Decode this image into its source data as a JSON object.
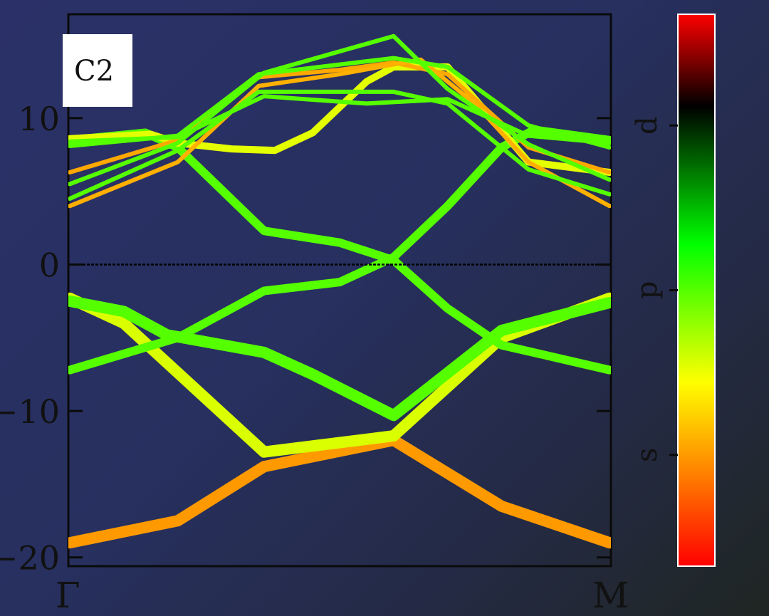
{
  "chart_data": {
    "type": "line",
    "panel_label": "C2",
    "x_ticks": [
      "Γ",
      "M"
    ],
    "ylim": [
      -20.5,
      17
    ],
    "y_ticks": [
      10,
      0,
      -10,
      -20
    ],
    "y_tick_labels": [
      "10",
      "0",
      "−10",
      "−20"
    ],
    "fermi_level": 0,
    "colorbar": {
      "labels": [
        "s",
        "p",
        "d"
      ],
      "label_positions": [
        0.2,
        0.5,
        0.8
      ],
      "colors": [
        "#ff0000",
        "#ffff00",
        "#00ff00",
        "#000000",
        "#ff0000"
      ],
      "color_stops": [
        0,
        0.3333,
        0.5833,
        0.8333,
        1
      ]
    },
    "series": [
      {
        "points": [
          [
            0,
            -19
          ],
          [
            0.2,
            -17.5
          ],
          [
            0.36,
            -13.8
          ],
          [
            0.6,
            -12
          ],
          [
            0.8,
            -16.5
          ],
          [
            1,
            -19
          ]
        ],
        "character": 0.2,
        "weight": 4
      },
      {
        "points": [
          [
            0,
            -2.3
          ],
          [
            0.1,
            -4
          ],
          [
            0.36,
            -12.8
          ],
          [
            0.6,
            -11.7
          ],
          [
            0.8,
            -5
          ],
          [
            1,
            -2.3
          ]
        ],
        "character": 0.37,
        "weight": 4
      },
      {
        "points": [
          [
            0,
            -2.5
          ],
          [
            0.1,
            -3.2
          ],
          [
            0.18,
            -4.8
          ],
          [
            0.36,
            -6
          ],
          [
            0.45,
            -7.5
          ],
          [
            0.6,
            -10.3
          ],
          [
            0.8,
            -4.5
          ],
          [
            1,
            -2.6
          ]
        ],
        "character": 0.5,
        "weight": 4
      },
      {
        "points": [
          [
            0,
            -7.2
          ],
          [
            0.2,
            -5
          ],
          [
            0.36,
            -1.8
          ],
          [
            0.5,
            -1.2
          ],
          [
            0.6,
            0.5
          ],
          [
            0.7,
            4
          ],
          [
            0.8,
            8
          ],
          [
            0.86,
            9.2
          ],
          [
            1,
            8.5
          ]
        ],
        "character": 0.5,
        "weight": 3
      },
      {
        "points": [
          [
            0,
            8.5
          ],
          [
            0.14,
            9
          ],
          [
            0.2,
            8
          ],
          [
            0.36,
            2.3
          ],
          [
            0.5,
            1.5
          ],
          [
            0.6,
            0.3
          ],
          [
            0.7,
            -3
          ],
          [
            0.8,
            -5.5
          ],
          [
            1,
            -7.2
          ]
        ],
        "character": 0.5,
        "weight": 3
      },
      {
        "points": [
          [
            0,
            8.6
          ],
          [
            0.15,
            8.9
          ],
          [
            0.2,
            8.3
          ],
          [
            0.3,
            7.9
          ],
          [
            0.38,
            7.8
          ],
          [
            0.45,
            9
          ],
          [
            0.55,
            12.5
          ],
          [
            0.6,
            13.5
          ],
          [
            0.7,
            13.5
          ],
          [
            0.85,
            7
          ],
          [
            1,
            6.3
          ]
        ],
        "character": 0.36,
        "weight": 2.5
      },
      {
        "points": [
          [
            0,
            6.3
          ],
          [
            0.2,
            8.5
          ],
          [
            0.35,
            12.8
          ],
          [
            0.5,
            13.3
          ],
          [
            0.6,
            13.8
          ],
          [
            0.7,
            13
          ],
          [
            0.85,
            8
          ],
          [
            1,
            6.3
          ]
        ],
        "character": 0.22,
        "weight": 1.5
      },
      {
        "points": [
          [
            0,
            4
          ],
          [
            0.2,
            7
          ],
          [
            0.35,
            12.2
          ],
          [
            0.5,
            13
          ],
          [
            0.65,
            14
          ],
          [
            0.75,
            11
          ],
          [
            0.85,
            7
          ],
          [
            1,
            4
          ]
        ],
        "character": 0.23,
        "weight": 1.5
      },
      {
        "points": [
          [
            0,
            4.5
          ],
          [
            0.2,
            7.8
          ],
          [
            0.35,
            11.8
          ],
          [
            0.6,
            11.8
          ],
          [
            0.7,
            11
          ],
          [
            0.85,
            6.5
          ],
          [
            1,
            4.8
          ]
        ],
        "character": 0.5,
        "weight": 1.5
      },
      {
        "points": [
          [
            0,
            5.5
          ],
          [
            0.2,
            8.3
          ],
          [
            0.36,
            13.1
          ],
          [
            0.6,
            15.6
          ],
          [
            0.7,
            12
          ],
          [
            0.85,
            8.2
          ],
          [
            1,
            5.8
          ]
        ],
        "character": 0.5,
        "weight": 1.5
      },
      {
        "points": [
          [
            0,
            8.1
          ],
          [
            0.2,
            8.8
          ],
          [
            0.35,
            13
          ],
          [
            0.6,
            14.1
          ],
          [
            0.7,
            13.5
          ],
          [
            0.85,
            9.5
          ],
          [
            1,
            8
          ]
        ],
        "character": 0.5,
        "weight": 1.5
      },
      {
        "points": [
          [
            0,
            8.4
          ],
          [
            0.2,
            8.7
          ],
          [
            0.36,
            11.5
          ],
          [
            0.55,
            11
          ],
          [
            0.7,
            11.3
          ],
          [
            0.85,
            8.8
          ],
          [
            1,
            8.3
          ]
        ],
        "character": 0.5,
        "weight": 1.5
      }
    ]
  }
}
